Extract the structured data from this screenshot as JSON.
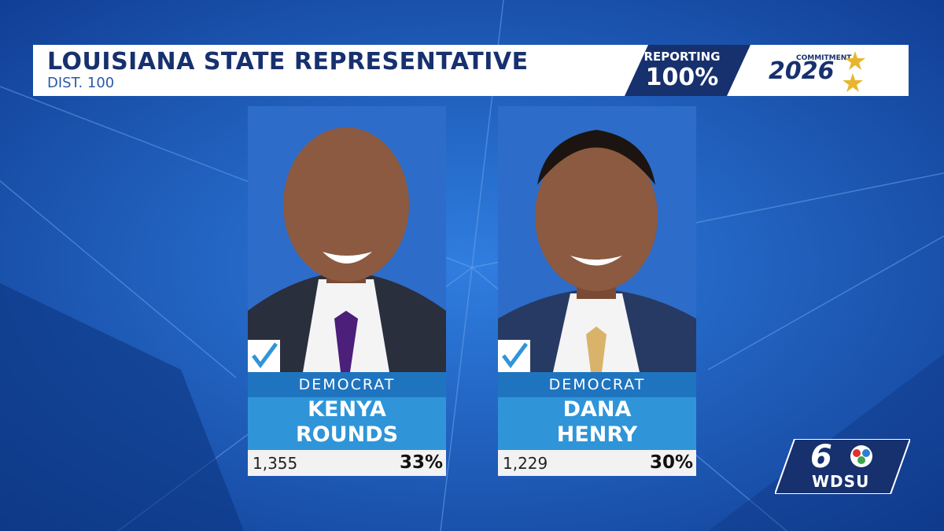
{
  "header": {
    "title": "LOUISIANA STATE REPRESENTATIVE",
    "subtitle": "DIST. 100"
  },
  "reporting": {
    "label": "REPORTING",
    "value": "100%"
  },
  "branding": {
    "top": "COMMITMENT",
    "year": "2026"
  },
  "candidates": [
    {
      "party": "DEMOCRAT",
      "name": [
        "KENYA",
        "ROUNDS"
      ],
      "votes": "1,355",
      "percent": "33%"
    },
    {
      "party": "DEMOCRAT",
      "name": [
        "DANA",
        "HENRY"
      ],
      "votes": "1,229",
      "percent": "30%"
    }
  ],
  "station": {
    "channel": "6",
    "call": "WDSU"
  }
}
